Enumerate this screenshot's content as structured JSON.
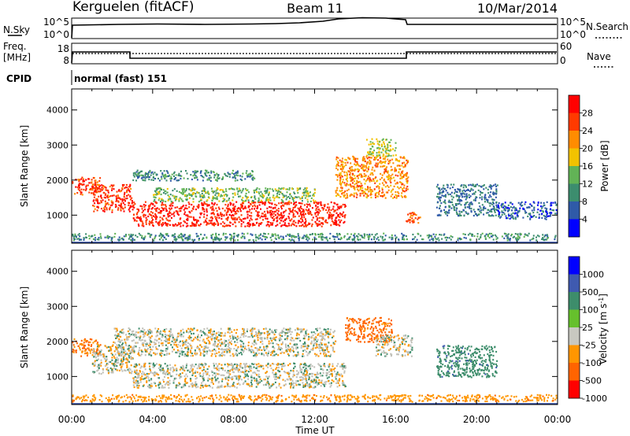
{
  "header": {
    "station": "Kerguelen (fitACF)",
    "beam": "Beam 11",
    "date": "10/Mar/2014"
  },
  "nsky_panel": {
    "label": "N.Sky",
    "tick_top": "10^5",
    "tick_bottom": "10^0",
    "right_label": "N.Search",
    "right_tick_top": "10^5",
    "right_tick_bottom": "10^0"
  },
  "freq_panel": {
    "label_top": "Freq.",
    "label_unit": "[MHz]",
    "tick_top": "18",
    "tick_bottom": "8",
    "right_label": "Nave",
    "right_tick_top": "60",
    "right_tick_bottom": "0"
  },
  "cpid": {
    "label": "CPID",
    "value": "normal (fast) 151"
  },
  "colors": {
    "power_scale": [
      "#0000ff",
      "#2f5aa8",
      "#3c8d6e",
      "#62b356",
      "#f2c200",
      "#ff8c00",
      "#ff3a00",
      "#ff0000"
    ],
    "velocity_scale": [
      "#0000ff",
      "#3f5ab0",
      "#3d8d6b",
      "#66c02c",
      "#c8c8c0",
      "#ff9600",
      "#ff6400",
      "#ff0000"
    ],
    "ground_scatter": "#c0c0b8"
  },
  "chart_data": [
    {
      "type": "heatmap",
      "name": "power",
      "ylabel": "Slant Range [km]",
      "ylim": [
        200,
        4600
      ],
      "yticks": [
        "1000",
        "2000",
        "3000",
        "4000"
      ],
      "xlim": [
        0,
        24
      ],
      "xticks": [
        "00:00",
        "04:00",
        "08:00",
        "12:00",
        "16:00",
        "20:00",
        "00:00"
      ],
      "colorbar": {
        "label": "Power [dB]",
        "ticks": [
          "4",
          "8",
          "12",
          "16",
          "20",
          "24",
          "28"
        ],
        "range": [
          0,
          32
        ]
      },
      "regions": [
        {
          "x0": 0.0,
          "x1": 1.4,
          "y0": 1600,
          "y1": 2100,
          "value": 26
        },
        {
          "x0": 1.0,
          "x1": 3.0,
          "y0": 1100,
          "y1": 1900,
          "value": 27
        },
        {
          "x0": 3.0,
          "x1": 13.5,
          "y0": 700,
          "y1": 1400,
          "value": 28
        },
        {
          "x0": 4.0,
          "x1": 12.0,
          "y0": 1400,
          "y1": 1800,
          "value": 14
        },
        {
          "x0": 3.0,
          "x1": 9.0,
          "y0": 2000,
          "y1": 2300,
          "value": 10
        },
        {
          "x0": 13.0,
          "x1": 16.6,
          "y0": 1500,
          "y1": 2700,
          "value": 22
        },
        {
          "x0": 14.5,
          "x1": 16.0,
          "y0": 2700,
          "y1": 3200,
          "value": 16
        },
        {
          "x0": 16.5,
          "x1": 17.2,
          "y0": 800,
          "y1": 1100,
          "value": 24
        },
        {
          "x0": 18.0,
          "x1": 21.0,
          "y0": 1000,
          "y1": 1900,
          "value": 8
        },
        {
          "x0": 21.0,
          "x1": 24.0,
          "y0": 900,
          "y1": 1400,
          "value": 6
        },
        {
          "x0": 0.0,
          "x1": 24.0,
          "y0": 300,
          "y1": 500,
          "value": 10
        }
      ]
    },
    {
      "type": "heatmap",
      "name": "velocity",
      "ylabel": "Slant Range [km]",
      "ylim": [
        200,
        4600
      ],
      "yticks": [
        "1000",
        "2000",
        "3000",
        "4000"
      ],
      "xlim": [
        0,
        24
      ],
      "xticks": [
        "00:00",
        "04:00",
        "08:00",
        "12:00",
        "16:00",
        "20:00",
        "00:00"
      ],
      "xlabel": "Time UT",
      "colorbar": {
        "label": "Velocity [m s",
        "label_sup": "-1",
        "label_end": "]",
        "ticks": [
          "1000",
          "500",
          "100",
          "25",
          "-25",
          "-100",
          "-500",
          "-1000"
        ]
      },
      "regions": [
        {
          "x0": 0.0,
          "x1": 1.4,
          "y0": 1600,
          "y1": 2100,
          "value": -300
        },
        {
          "x0": 1.0,
          "x1": 3.0,
          "y0": 1100,
          "y1": 1900,
          "value": 0
        },
        {
          "x0": 3.0,
          "x1": 13.5,
          "y0": 700,
          "y1": 1400,
          "value": 0
        },
        {
          "x0": 2.0,
          "x1": 13.0,
          "y0": 1600,
          "y1": 2400,
          "value": 0
        },
        {
          "x0": 13.5,
          "x1": 15.8,
          "y0": 2000,
          "y1": 2700,
          "value": -400
        },
        {
          "x0": 15.0,
          "x1": 16.8,
          "y0": 1600,
          "y1": 2200,
          "value": 0
        },
        {
          "x0": 18.0,
          "x1": 21.0,
          "y0": 1000,
          "y1": 1900,
          "value": 200
        },
        {
          "x0": 0.0,
          "x1": 24.0,
          "y0": 300,
          "y1": 500,
          "value": -200
        }
      ]
    }
  ]
}
